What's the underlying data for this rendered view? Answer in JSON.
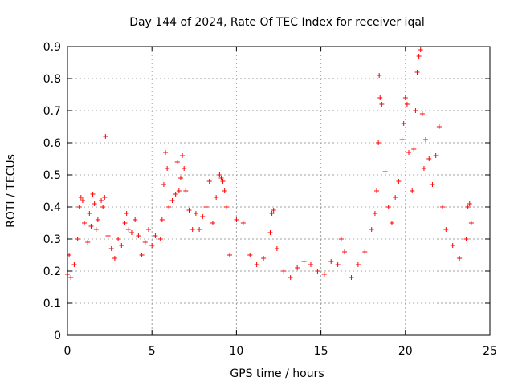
{
  "chart_data": {
    "type": "scatter",
    "title": "Day 144 of 2024, Rate Of TEC Index for receiver iqal",
    "xlabel": "GPS time / hours",
    "ylabel": "ROTI / TECUs",
    "xlim": [
      0,
      25
    ],
    "ylim": [
      0,
      0.9
    ],
    "xticks": [
      0,
      5,
      10,
      15,
      20,
      25
    ],
    "xtick_labels": [
      "0",
      "5",
      "10",
      "15",
      "20",
      "25"
    ],
    "yticks": [
      0,
      0.1,
      0.2,
      0.3,
      0.4,
      0.5,
      0.6,
      0.7,
      0.8,
      0.9
    ],
    "ytick_labels": [
      "0",
      "0.1",
      "0.2",
      "0.3",
      "0.4",
      "0.5",
      "0.6",
      "0.7",
      "0.8",
      "0.9"
    ],
    "grid": true,
    "marker": "+",
    "color": "#ff0000",
    "series": [
      {
        "name": "ROTI",
        "points": [
          [
            0.0,
            0.19
          ],
          [
            0.1,
            0.25
          ],
          [
            0.2,
            0.18
          ],
          [
            0.4,
            0.22
          ],
          [
            0.6,
            0.3
          ],
          [
            0.7,
            0.4
          ],
          [
            0.8,
            0.43
          ],
          [
            0.9,
            0.42
          ],
          [
            1.0,
            0.35
          ],
          [
            1.2,
            0.29
          ],
          [
            1.3,
            0.38
          ],
          [
            1.4,
            0.34
          ],
          [
            1.5,
            0.44
          ],
          [
            1.6,
            0.41
          ],
          [
            1.7,
            0.33
          ],
          [
            1.8,
            0.36
          ],
          [
            2.0,
            0.42
          ],
          [
            2.1,
            0.4
          ],
          [
            2.2,
            0.43
          ],
          [
            2.25,
            0.62
          ],
          [
            2.4,
            0.31
          ],
          [
            2.6,
            0.27
          ],
          [
            2.8,
            0.24
          ],
          [
            3.0,
            0.3
          ],
          [
            3.2,
            0.28
          ],
          [
            3.4,
            0.35
          ],
          [
            3.5,
            0.38
          ],
          [
            3.6,
            0.33
          ],
          [
            3.8,
            0.32
          ],
          [
            4.0,
            0.36
          ],
          [
            4.2,
            0.31
          ],
          [
            4.4,
            0.25
          ],
          [
            4.6,
            0.29
          ],
          [
            4.8,
            0.33
          ],
          [
            5.0,
            0.28
          ],
          [
            5.2,
            0.31
          ],
          [
            5.5,
            0.3
          ],
          [
            5.6,
            0.36
          ],
          [
            5.7,
            0.47
          ],
          [
            5.8,
            0.57
          ],
          [
            5.9,
            0.52
          ],
          [
            6.0,
            0.4
          ],
          [
            6.2,
            0.42
          ],
          [
            6.4,
            0.44
          ],
          [
            6.5,
            0.54
          ],
          [
            6.6,
            0.45
          ],
          [
            6.7,
            0.49
          ],
          [
            6.8,
            0.56
          ],
          [
            6.9,
            0.52
          ],
          [
            7.0,
            0.45
          ],
          [
            7.2,
            0.39
          ],
          [
            7.4,
            0.33
          ],
          [
            7.6,
            0.38
          ],
          [
            7.8,
            0.33
          ],
          [
            8.0,
            0.37
          ],
          [
            8.2,
            0.4
          ],
          [
            8.4,
            0.48
          ],
          [
            8.6,
            0.35
          ],
          [
            8.8,
            0.43
          ],
          [
            9.0,
            0.5
          ],
          [
            9.1,
            0.49
          ],
          [
            9.2,
            0.48
          ],
          [
            9.3,
            0.45
          ],
          [
            9.4,
            0.4
          ],
          [
            9.6,
            0.25
          ],
          [
            10.0,
            0.36
          ],
          [
            10.4,
            0.35
          ],
          [
            10.8,
            0.25
          ],
          [
            11.2,
            0.22
          ],
          [
            11.6,
            0.24
          ],
          [
            12.0,
            0.32
          ],
          [
            12.1,
            0.38
          ],
          [
            12.2,
            0.39
          ],
          [
            12.4,
            0.27
          ],
          [
            12.8,
            0.2
          ],
          [
            13.2,
            0.18
          ],
          [
            13.6,
            0.21
          ],
          [
            14.0,
            0.23
          ],
          [
            14.4,
            0.22
          ],
          [
            14.8,
            0.2
          ],
          [
            15.2,
            0.19
          ],
          [
            15.6,
            0.23
          ],
          [
            16.0,
            0.22
          ],
          [
            16.2,
            0.3
          ],
          [
            16.4,
            0.26
          ],
          [
            16.8,
            0.18
          ],
          [
            17.2,
            0.22
          ],
          [
            17.6,
            0.26
          ],
          [
            18.0,
            0.33
          ],
          [
            18.2,
            0.38
          ],
          [
            18.3,
            0.45
          ],
          [
            18.4,
            0.6
          ],
          [
            18.45,
            0.81
          ],
          [
            18.5,
            0.74
          ],
          [
            18.6,
            0.72
          ],
          [
            18.8,
            0.51
          ],
          [
            19.0,
            0.4
          ],
          [
            19.2,
            0.35
          ],
          [
            19.4,
            0.43
          ],
          [
            19.6,
            0.48
          ],
          [
            19.8,
            0.61
          ],
          [
            19.9,
            0.66
          ],
          [
            20.0,
            0.74
          ],
          [
            20.1,
            0.72
          ],
          [
            20.2,
            0.57
          ],
          [
            20.4,
            0.45
          ],
          [
            20.5,
            0.58
          ],
          [
            20.6,
            0.7
          ],
          [
            20.7,
            0.82
          ],
          [
            20.8,
            0.87
          ],
          [
            20.9,
            0.89
          ],
          [
            21.0,
            0.69
          ],
          [
            21.1,
            0.52
          ],
          [
            21.2,
            0.61
          ],
          [
            21.4,
            0.55
          ],
          [
            21.6,
            0.47
          ],
          [
            21.8,
            0.56
          ],
          [
            22.0,
            0.65
          ],
          [
            22.2,
            0.4
          ],
          [
            22.4,
            0.33
          ],
          [
            22.8,
            0.28
          ],
          [
            23.2,
            0.24
          ],
          [
            23.6,
            0.3
          ],
          [
            23.7,
            0.4
          ],
          [
            23.8,
            0.41
          ],
          [
            23.9,
            0.35
          ]
        ]
      }
    ]
  }
}
